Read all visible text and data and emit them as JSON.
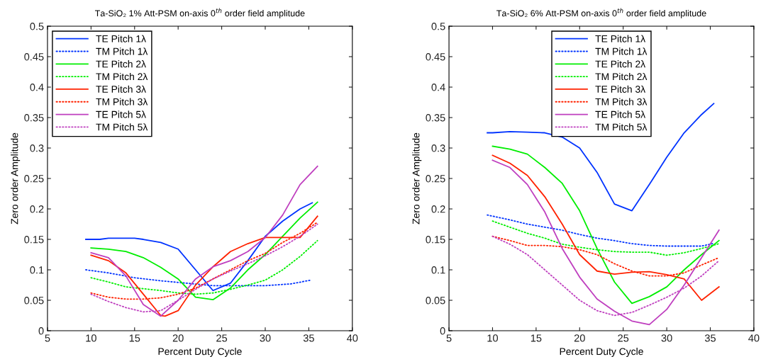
{
  "chart_data": [
    {
      "type": "line",
      "title": "Ta-SiO₂ 1% Att-PSM on-axis 0$^{th}$ order field amplitude",
      "xlabel": "Percent Duty Cycle",
      "ylabel": "Zero order Amplitude",
      "xlim": [
        5,
        40
      ],
      "xticks": [
        5,
        10,
        15,
        20,
        25,
        30,
        35,
        40
      ],
      "ylim": [
        0,
        0.5
      ],
      "yticks": [
        0,
        0.05,
        0.1,
        0.15,
        0.2,
        0.25,
        0.3,
        0.35,
        0.4,
        0.45,
        0.5
      ],
      "grid": false,
      "legend": "top left",
      "marker": "none",
      "series": [
        {
          "name": "TE Pitch 1λ",
          "color": "#0033ff",
          "line_style": "solid",
          "x": [
            9.4,
            11,
            12,
            15,
            16,
            18,
            20,
            22,
            24,
            26,
            28,
            30,
            32,
            34,
            35.4
          ],
          "values": [
            0.15,
            0.15,
            0.152,
            0.152,
            0.15,
            0.145,
            0.134,
            0.1,
            0.066,
            0.078,
            0.115,
            0.155,
            0.18,
            0.2,
            0.21
          ]
        },
        {
          "name": "TM Pitch 1λ",
          "color": "#0033ff",
          "line_style": "dotted",
          "x": [
            9.4,
            12,
            15,
            18,
            21,
            24,
            27,
            30,
            33,
            35.2
          ],
          "values": [
            0.1,
            0.095,
            0.087,
            0.082,
            0.078,
            0.074,
            0.074,
            0.074,
            0.077,
            0.083
          ]
        },
        {
          "name": "TE Pitch 2λ",
          "color": "#00ee00",
          "line_style": "solid",
          "x": [
            10,
            12,
            14,
            16,
            18,
            20,
            22,
            24,
            26,
            28,
            30,
            32,
            34,
            36
          ],
          "values": [
            0.136,
            0.134,
            0.13,
            0.12,
            0.104,
            0.085,
            0.055,
            0.051,
            0.07,
            0.1,
            0.125,
            0.155,
            0.185,
            0.211
          ]
        },
        {
          "name": "TM Pitch 2λ",
          "color": "#00ee00",
          "line_style": "dotted",
          "x": [
            10,
            12,
            14,
            16,
            18,
            20,
            22,
            24,
            26,
            28,
            30,
            32,
            34,
            36
          ],
          "values": [
            0.087,
            0.08,
            0.072,
            0.069,
            0.066,
            0.062,
            0.06,
            0.062,
            0.068,
            0.075,
            0.083,
            0.1,
            0.122,
            0.148
          ]
        },
        {
          "name": "TE Pitch 3λ",
          "color": "#ff2200",
          "line_style": "solid",
          "x": [
            10,
            12,
            14,
            16,
            18,
            18.5,
            20,
            22,
            24,
            26,
            28,
            30,
            32,
            34,
            36
          ],
          "values": [
            0.124,
            0.115,
            0.095,
            0.06,
            0.025,
            0.024,
            0.033,
            0.075,
            0.105,
            0.13,
            0.143,
            0.153,
            0.153,
            0.153,
            0.188
          ]
        },
        {
          "name": "TM Pitch 3λ",
          "color": "#ff2200",
          "line_style": "dotted",
          "x": [
            10,
            12,
            14,
            16,
            18,
            20,
            22,
            24,
            26,
            28,
            30,
            32,
            34,
            36
          ],
          "values": [
            0.062,
            0.055,
            0.052,
            0.052,
            0.054,
            0.06,
            0.07,
            0.085,
            0.1,
            0.115,
            0.127,
            0.145,
            0.16,
            0.178
          ]
        },
        {
          "name": "TE Pitch 5λ",
          "color": "#bf3fbf",
          "line_style": "solid",
          "x": [
            10,
            12,
            14,
            16,
            18,
            20,
            22,
            24,
            26,
            28,
            30,
            32,
            34,
            36
          ],
          "values": [
            0.128,
            0.12,
            0.09,
            0.043,
            0.024,
            0.05,
            0.085,
            0.105,
            0.115,
            0.13,
            0.153,
            0.19,
            0.24,
            0.27
          ]
        },
        {
          "name": "TM Pitch 5λ",
          "color": "#bf3fbf",
          "line_style": "dotted",
          "x": [
            10,
            12,
            14,
            16,
            18,
            20,
            22,
            24,
            26,
            28,
            30,
            32,
            34,
            36
          ],
          "values": [
            0.06,
            0.048,
            0.038,
            0.031,
            0.033,
            0.05,
            0.068,
            0.085,
            0.098,
            0.11,
            0.123,
            0.138,
            0.155,
            0.175
          ]
        }
      ]
    },
    {
      "type": "line",
      "title": "Ta-SiO₂ 6% Att-PSM on-axis 0$^{th}$ order field amplitude",
      "xlabel": "Percent Duty Cycle",
      "ylabel": "Zero order Amplitude",
      "xlim": [
        5,
        40
      ],
      "xticks": [
        5,
        10,
        15,
        20,
        25,
        30,
        35,
        40
      ],
      "ylim": [
        0,
        0.5
      ],
      "yticks": [
        0,
        0.05,
        0.1,
        0.15,
        0.2,
        0.25,
        0.3,
        0.35,
        0.4,
        0.45,
        0.5
      ],
      "grid": false,
      "legend": "top",
      "marker": "none",
      "series": [
        {
          "name": "TE Pitch 1λ",
          "color": "#0033ff",
          "line_style": "solid",
          "x": [
            9.4,
            10,
            12,
            14,
            16,
            18,
            20,
            22,
            24,
            26,
            28,
            30,
            32,
            34,
            35.4
          ],
          "values": [
            0.325,
            0.325,
            0.327,
            0.326,
            0.325,
            0.318,
            0.3,
            0.26,
            0.208,
            0.197,
            0.24,
            0.285,
            0.325,
            0.355,
            0.373
          ]
        },
        {
          "name": "TM Pitch 1λ",
          "color": "#0033ff",
          "line_style": "dotted",
          "x": [
            9.4,
            12,
            14,
            16,
            18,
            20,
            22,
            24,
            26,
            28,
            30,
            32,
            34,
            35.3
          ],
          "values": [
            0.19,
            0.182,
            0.175,
            0.17,
            0.165,
            0.158,
            0.152,
            0.148,
            0.143,
            0.14,
            0.139,
            0.139,
            0.139,
            0.143
          ]
        },
        {
          "name": "TE Pitch 2λ",
          "color": "#00ee00",
          "line_style": "solid",
          "x": [
            10,
            12,
            14,
            16,
            18,
            20,
            22,
            24,
            26,
            28,
            30,
            32,
            34,
            36
          ],
          "values": [
            0.303,
            0.298,
            0.29,
            0.268,
            0.242,
            0.197,
            0.135,
            0.08,
            0.045,
            0.056,
            0.072,
            0.1,
            0.125,
            0.148
          ]
        },
        {
          "name": "TM Pitch 2λ",
          "color": "#00ee00",
          "line_style": "dotted",
          "x": [
            10,
            12,
            14,
            16,
            18,
            20,
            22,
            24,
            26,
            28,
            30,
            32,
            34,
            36
          ],
          "values": [
            0.18,
            0.17,
            0.16,
            0.152,
            0.142,
            0.137,
            0.133,
            0.13,
            0.129,
            0.129,
            0.124,
            0.128,
            0.135,
            0.143
          ]
        },
        {
          "name": "TE Pitch 3λ",
          "color": "#ff2200",
          "line_style": "solid",
          "x": [
            10,
            12,
            14,
            16,
            18,
            20,
            22,
            24,
            26,
            28,
            30,
            32,
            34,
            36
          ],
          "values": [
            0.288,
            0.275,
            0.255,
            0.22,
            0.175,
            0.125,
            0.098,
            0.093,
            0.096,
            0.097,
            0.092,
            0.085,
            0.05,
            0.072
          ]
        },
        {
          "name": "TM Pitch 3λ",
          "color": "#ff2200",
          "line_style": "dotted",
          "x": [
            10,
            12,
            14,
            16,
            18,
            20,
            22,
            24,
            26,
            28,
            30,
            32,
            34,
            36
          ],
          "values": [
            0.155,
            0.148,
            0.14,
            0.14,
            0.138,
            0.133,
            0.125,
            0.11,
            0.098,
            0.09,
            0.09,
            0.095,
            0.108,
            0.12
          ]
        },
        {
          "name": "TE Pitch 5λ",
          "color": "#bf3fbf",
          "line_style": "solid",
          "x": [
            10,
            12,
            14,
            16,
            18,
            20,
            22,
            24,
            26,
            28,
            30,
            32,
            34,
            36
          ],
          "values": [
            0.28,
            0.268,
            0.24,
            0.195,
            0.135,
            0.088,
            0.052,
            0.032,
            0.016,
            0.01,
            0.035,
            0.075,
            0.12,
            0.165
          ]
        },
        {
          "name": "TM Pitch 5λ",
          "color": "#bf3fbf",
          "line_style": "dotted",
          "x": [
            10,
            12,
            14,
            16,
            18,
            20,
            22,
            24,
            26,
            28,
            30,
            32,
            34,
            36
          ],
          "values": [
            0.155,
            0.142,
            0.125,
            0.1,
            0.075,
            0.05,
            0.033,
            0.025,
            0.03,
            0.042,
            0.055,
            0.07,
            0.09,
            0.115
          ]
        }
      ]
    }
  ]
}
